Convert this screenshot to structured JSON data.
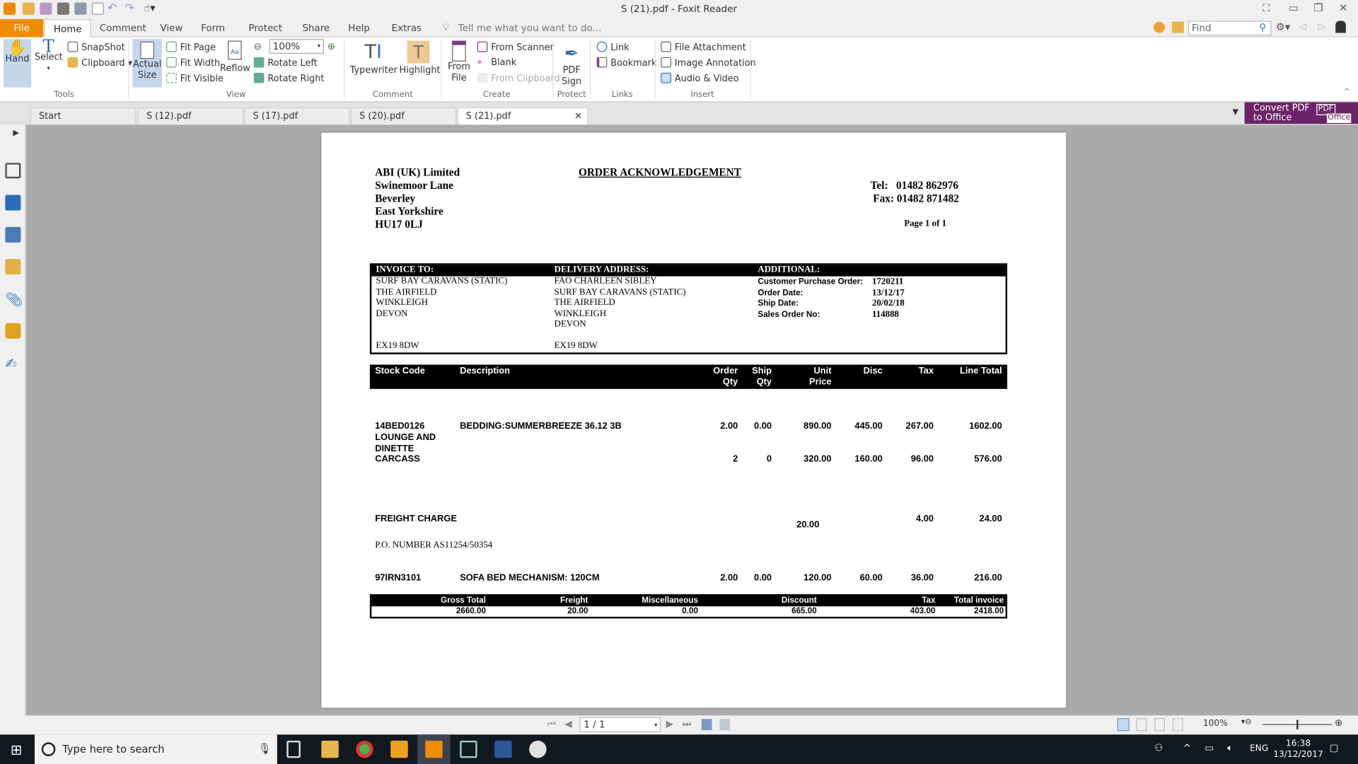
{
  "window": {
    "title": "S (21).pdf - Foxit Reader"
  },
  "menu": {
    "tabs": [
      "File",
      "Home",
      "Comment",
      "View",
      "Form",
      "Protect",
      "Share",
      "Help",
      "Extras"
    ],
    "tell_me": "Tell me what you want to do...",
    "find_placeholder": "Find"
  },
  "ribbon": {
    "tools": {
      "hand": "Hand",
      "select": "Select",
      "snapshot": "SnapShot",
      "clipboard": "Clipboard",
      "group": "Tools"
    },
    "view": {
      "actual_size_1": "Actual",
      "actual_size_2": "Size",
      "fit_page": "Fit Page",
      "fit_width": "Fit Width",
      "fit_visible": "Fit Visible",
      "reflow": "Reflow",
      "zoom": "100%",
      "rotate_left": "Rotate Left",
      "rotate_right": "Rotate Right",
      "group": "View"
    },
    "comment": {
      "typewriter": "Typewriter",
      "highlight": "Highlight",
      "group": "Comment"
    },
    "create": {
      "from_file_1": "From",
      "from_file_2": "File",
      "from_scanner": "From Scanner",
      "blank": "Blank",
      "from_clipboard": "From Clipboard",
      "group": "Create"
    },
    "protect": {
      "pdf_sign_1": "PDF",
      "pdf_sign_2": "Sign",
      "group": "Protect"
    },
    "links": {
      "link": "Link",
      "bookmark": "Bookmark",
      "group": "Links"
    },
    "insert": {
      "file_attachment": "File Attachment",
      "image_annotation": "Image Annotation",
      "audio_video": "Audio & Video",
      "group": "Insert"
    }
  },
  "doc_tabs": [
    "Start",
    "S (12).pdf",
    "S (17).pdf",
    "S (20).pdf",
    "S (21).pdf"
  ],
  "convert": {
    "line1": "Convert PDF",
    "line2": "to Office",
    "badge1": "PDF",
    "badge2": "Office"
  },
  "document": {
    "company": [
      "ABI (UK) Limited",
      "Swinemoor Lane",
      "Beverley",
      "East Yorkshire",
      "HU17 0LJ"
    ],
    "title": "ORDER ACKNOWLEDGEMENT",
    "tel": "Tel:   01482 862976",
    "fax": "Fax: 01482 871482",
    "page": "Page 1 of 1",
    "invoice_to": {
      "label": "INVOICE TO:",
      "lines": [
        "SURF BAY CARAVANS (STATIC)",
        "THE AIRFIELD",
        "WINKLEIGH",
        "DEVON"
      ],
      "postcode": "EX19 8DW"
    },
    "delivery": {
      "label": "DELIVERY ADDRESS:",
      "lines": [
        "FAO CHARLEEN SIBLEY",
        "SURF BAY CARAVANS (STATIC)",
        "THE AIRFIELD",
        "WINKLEIGH",
        "DEVON"
      ],
      "postcode": "EX19 8DW"
    },
    "additional": {
      "label": "ADDITIONAL:",
      "fields": [
        {
          "k": "Customer Purchase Order:",
          "v": "1720211"
        },
        {
          "k": "Order Date:",
          "v": "13/12/17"
        },
        {
          "k": "Ship Date:",
          "v": "20/02/18"
        },
        {
          "k": "Sales Order No:",
          "v": "114888"
        }
      ]
    },
    "columns": {
      "stock": "Stock Code",
      "desc": "Description",
      "order1": "Order",
      "order2": "Qty",
      "ship1": "Ship",
      "ship2": "Qty",
      "unit1": "Unit",
      "unit2": "Price",
      "disc": "Disc",
      "tax": "Tax",
      "total": "Line Total"
    },
    "rows": [
      {
        "stock": "14BED0126",
        "desc": "BEDDING:SUMMERBREEZE 36.12 3B",
        "order": "2.00",
        "ship": "0.00",
        "unit": "890.00",
        "disc": "445.00",
        "tax": "267.00",
        "total": "1602.00"
      },
      {
        "stock1": "LOUNGE AND",
        "stock2": "DINETTE",
        "stock3": "CARCASS",
        "order": "2",
        "ship": "0",
        "unit": "320.00",
        "disc": "160.00",
        "tax": "96.00",
        "total": "576.00"
      },
      {
        "stock": "FREIGHT CHARGE",
        "unit": "20.00",
        "tax": "4.00",
        "total": "24.00"
      },
      {
        "note": "P.O. NUMBER AS11254/50354"
      },
      {
        "stock": "97IRN3101",
        "desc": "SOFA BED MECHANISM: 120CM",
        "order": "2.00",
        "ship": "0.00",
        "unit": "120.00",
        "disc": "60.00",
        "tax": "36.00",
        "total": "216.00"
      }
    ],
    "totals": {
      "labels": [
        "Gross Total",
        "Freight",
        "Miscellaneous",
        "Discount",
        "Tax",
        "Total invoice"
      ],
      "values": [
        "2660.00",
        "20.00",
        "0.00",
        "665.00",
        "403.00",
        "2418.00"
      ]
    }
  },
  "status": {
    "page": "1 / 1",
    "zoom": "100%"
  },
  "taskbar": {
    "search": "Type here to search",
    "lang": "ENG",
    "time": "16:38",
    "date": "13/12/2017"
  },
  "colors": {
    "file_tab": "#f08c00",
    "convert": "#6b2468",
    "selected": "#c5d7ef"
  }
}
